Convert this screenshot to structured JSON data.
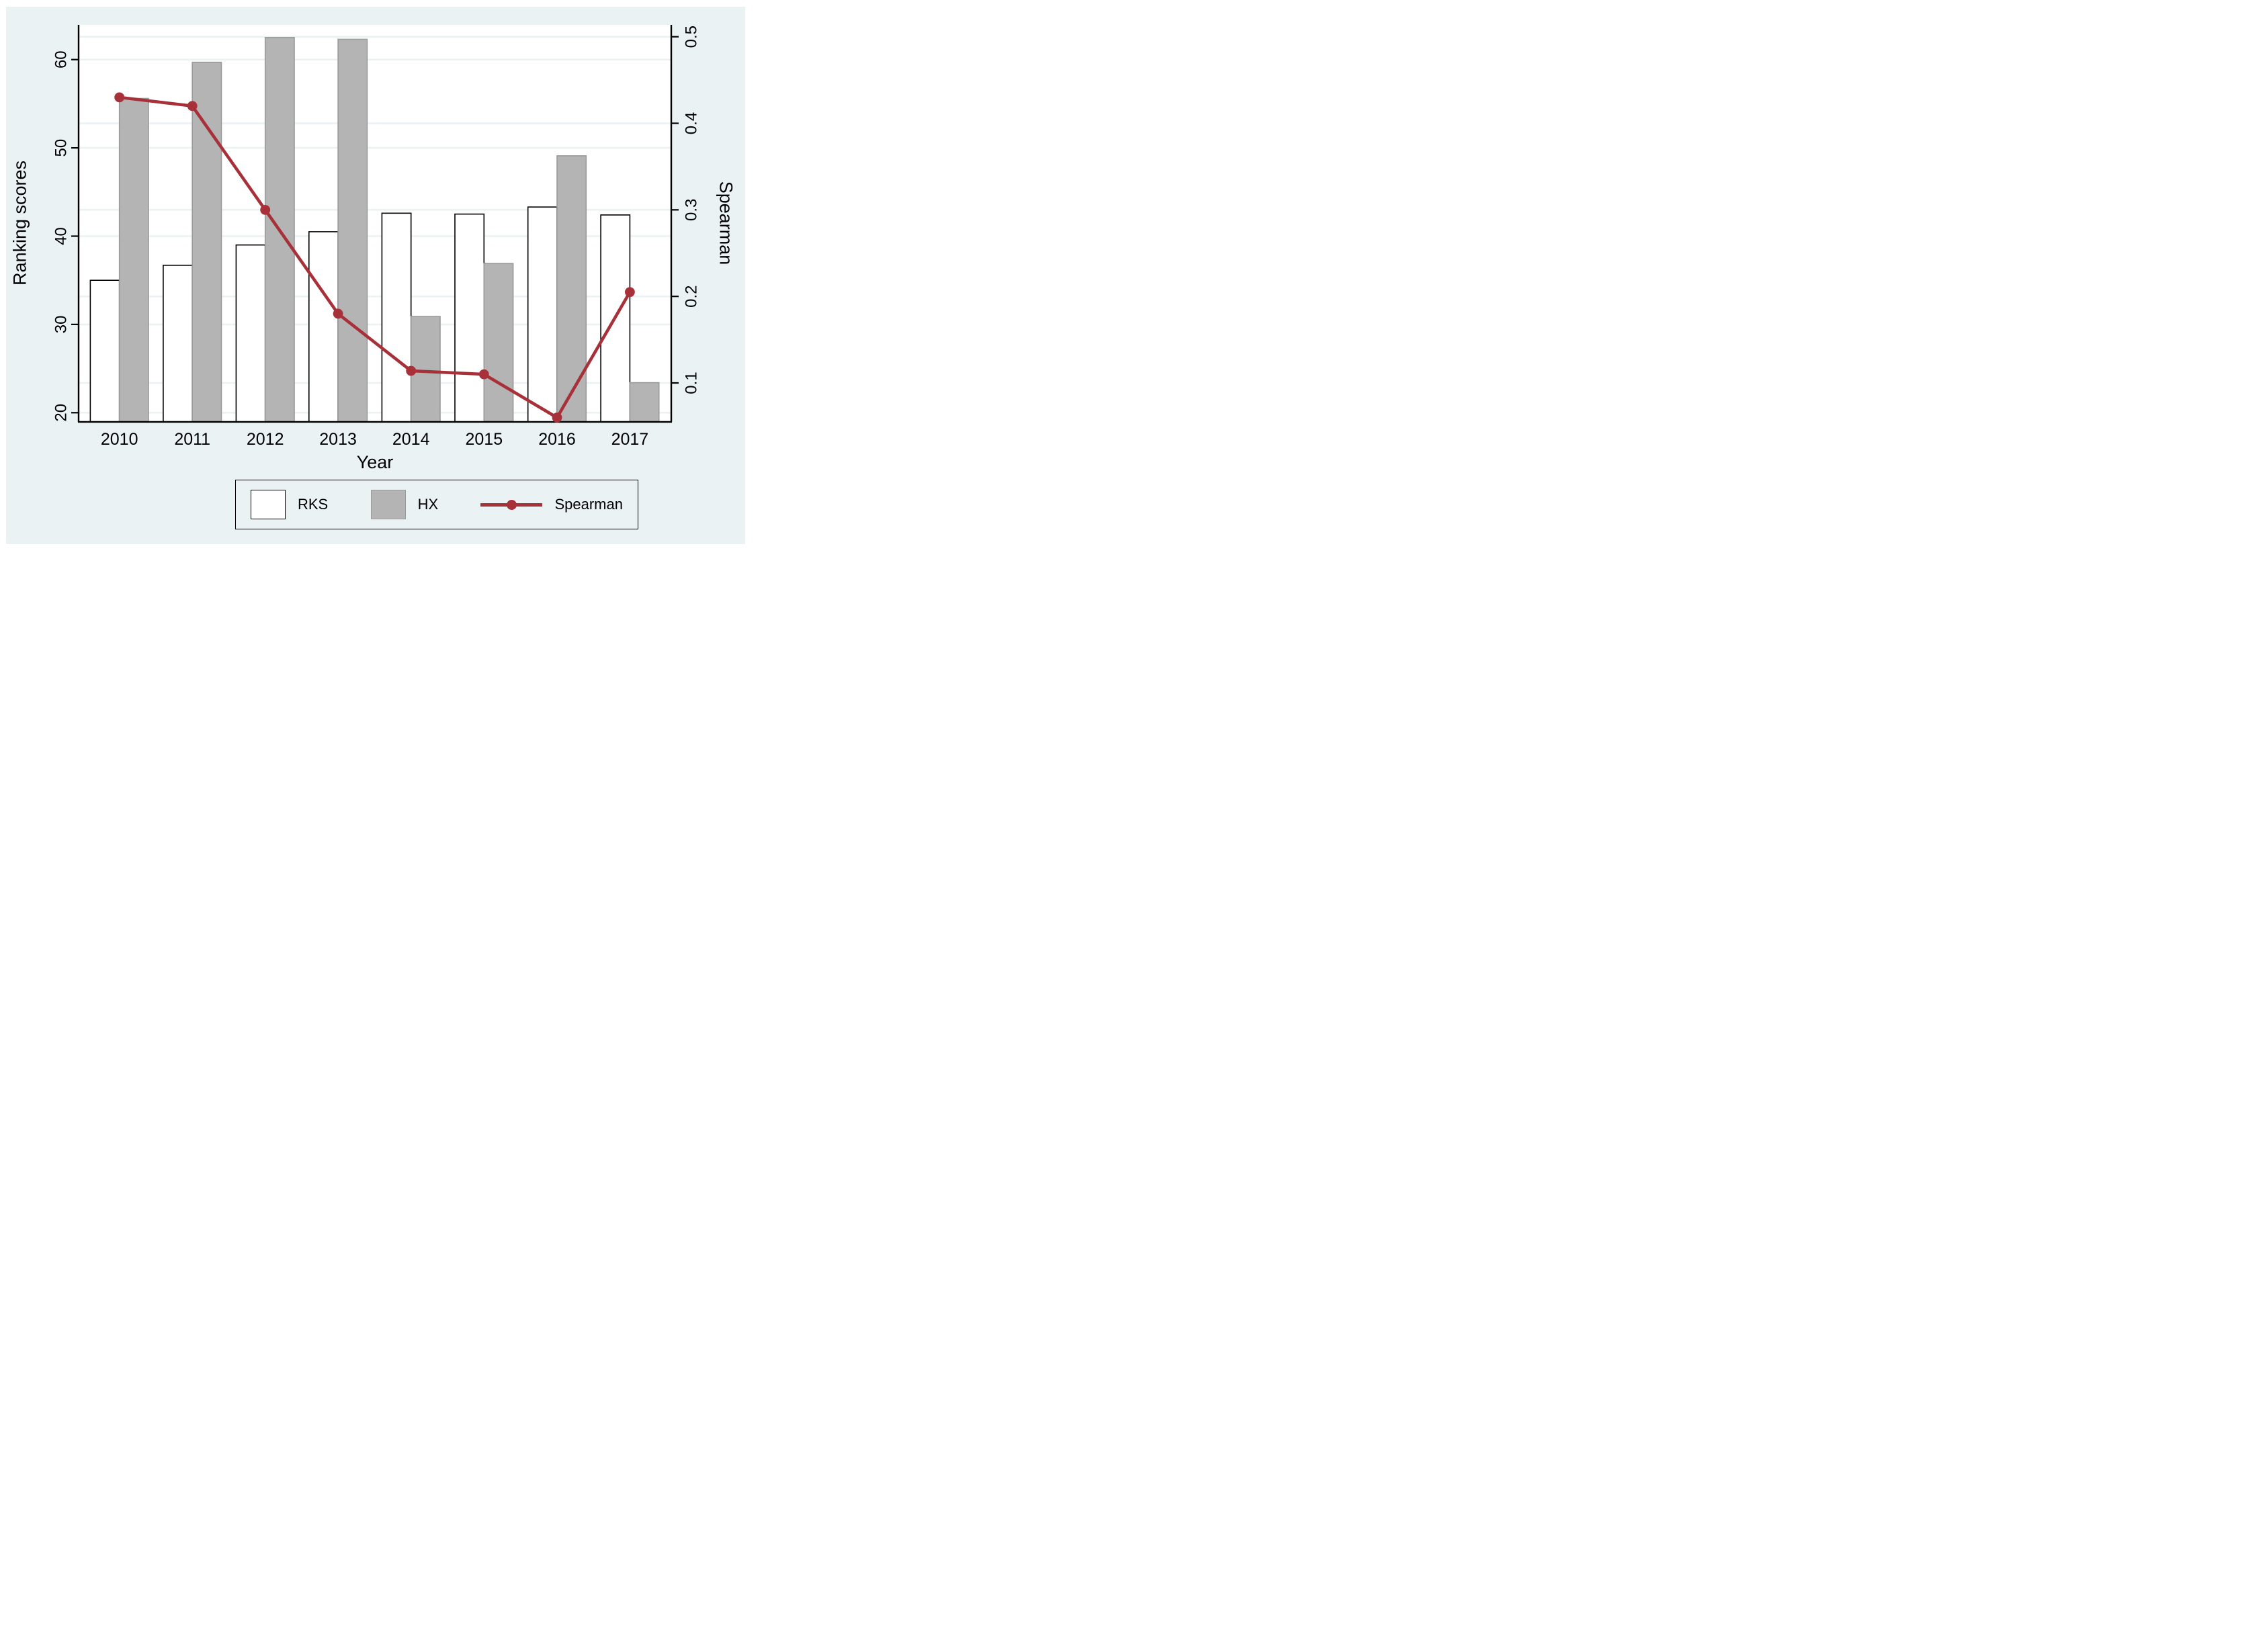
{
  "chart_data": {
    "type": "bar+line",
    "title": "",
    "categories": [
      "2010",
      "2011",
      "2012",
      "2013",
      "2014",
      "2015",
      "2016",
      "2017"
    ],
    "series": [
      {
        "name": "RKS",
        "type": "bar",
        "axis": "left",
        "values": [
          35.0,
          36.7,
          39.0,
          40.5,
          42.6,
          42.5,
          43.3,
          42.4
        ],
        "fill": "#ffffff",
        "border": "#000000"
      },
      {
        "name": "HX",
        "type": "bar",
        "axis": "left",
        "values": [
          55.6,
          59.7,
          62.5,
          62.3,
          30.9,
          36.9,
          49.1,
          23.4
        ],
        "fill": "#b4b4b4",
        "border": "#9a9a9a"
      },
      {
        "name": "Spearman",
        "type": "line",
        "axis": "right",
        "values": [
          0.43,
          0.42,
          0.3,
          0.18,
          0.114,
          0.11,
          0.06,
          0.205
        ],
        "color": "#a73039"
      }
    ],
    "x_axis": {
      "title": "Year"
    },
    "left_axis": {
      "title": "Ranking scores",
      "ticks": [
        20,
        30,
        40,
        50,
        60
      ],
      "tick_labels": [
        "20",
        "30",
        "40",
        "50",
        "60"
      ],
      "range": [
        18.9,
        64.0
      ]
    },
    "right_axis": {
      "title": "Spearman",
      "ticks": [
        0.1,
        0.2,
        0.3,
        0.4,
        0.5
      ],
      "tick_labels": [
        "0.1",
        "0.2",
        "0.3",
        "0.4",
        "0.5"
      ],
      "range": [
        0.054,
        0.515
      ]
    },
    "grid": true,
    "legend_position": "bottom",
    "legend": [
      "RKS",
      "HX",
      "Spearman"
    ]
  },
  "colors": {
    "figure_background": "#eaf2f3",
    "plot_background": "#ffffff",
    "gridline": "#eaf2f3",
    "axis": "#000000",
    "bar_rks_fill": "#ffffff",
    "bar_rks_border": "#000000",
    "bar_hx_fill": "#b4b4b4",
    "bar_hx_border": "#9a9a9a",
    "spearman_line": "#a73039"
  }
}
